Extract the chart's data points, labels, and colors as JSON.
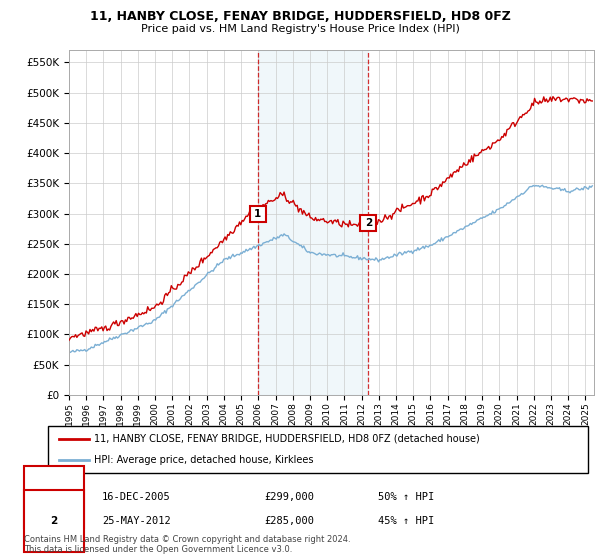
{
  "title_line1": "11, HANBY CLOSE, FENAY BRIDGE, HUDDERSFIELD, HD8 0FZ",
  "title_line2": "Price paid vs. HM Land Registry's House Price Index (HPI)",
  "xmin": 1995.0,
  "xmax": 2025.5,
  "ymin": 0,
  "ymax": 570000,
  "yticks": [
    0,
    50000,
    100000,
    150000,
    200000,
    250000,
    300000,
    350000,
    400000,
    450000,
    500000,
    550000
  ],
  "ytick_labels": [
    "£0",
    "£50K",
    "£100K",
    "£150K",
    "£200K",
    "£250K",
    "£300K",
    "£350K",
    "£400K",
    "£450K",
    "£500K",
    "£550K"
  ],
  "xtick_years": [
    1995,
    1996,
    1997,
    1998,
    1999,
    2000,
    2001,
    2002,
    2003,
    2004,
    2005,
    2006,
    2007,
    2008,
    2009,
    2010,
    2011,
    2012,
    2013,
    2014,
    2015,
    2016,
    2017,
    2018,
    2019,
    2020,
    2021,
    2022,
    2023,
    2024,
    2025
  ],
  "hpi_line_color": "#7BAFD4",
  "price_line_color": "#CC0000",
  "sale1_x": 2005.96,
  "sale1_y": 299000,
  "sale1_label": "1",
  "sale1_date": "16-DEC-2005",
  "sale1_price": "£299,000",
  "sale1_hpi": "50% ↑ HPI",
  "sale2_x": 2012.39,
  "sale2_y": 285000,
  "sale2_label": "2",
  "sale2_date": "25-MAY-2012",
  "sale2_price": "£285,000",
  "sale2_hpi": "45% ↑ HPI",
  "shaded_region_x1": 2005.96,
  "shaded_region_x2": 2012.39,
  "legend_line1": "11, HANBY CLOSE, FENAY BRIDGE, HUDDERSFIELD, HD8 0FZ (detached house)",
  "legend_line2": "HPI: Average price, detached house, Kirklees",
  "footnote1": "Contains HM Land Registry data © Crown copyright and database right 2024.",
  "footnote2": "This data is licensed under the Open Government Licence v3.0.",
  "background_color": "#FFFFFF",
  "plot_bg_color": "#FFFFFF",
  "grid_color": "#CCCCCC"
}
